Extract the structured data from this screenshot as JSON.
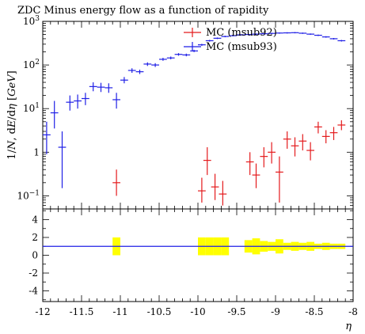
{
  "chart_data": [
    {
      "type": "scatter",
      "title": "ZDC Minus energy flow as a function of rapidity",
      "ylabel": "1/N dE/dη [GeV]",
      "ylabel_parts": [
        "1/",
        "N",
        ", d",
        "E",
        "/d",
        "η",
        " [",
        "GeV",
        "]"
      ],
      "yscale": "log",
      "ylim": [
        0.05,
        1000
      ],
      "xlim": [
        -12,
        -8
      ],
      "y_tick_labels": [
        {
          "value": 1000,
          "base": "10",
          "exp": "3"
        },
        {
          "value": 100,
          "base": "10",
          "exp": "2"
        },
        {
          "value": 10,
          "base": "10",
          "exp": "1"
        },
        {
          "value": 1,
          "base": "1",
          "exp": ""
        },
        {
          "value": 0.1,
          "base": "10",
          "exp": "−1"
        }
      ],
      "legend_position": "top-right",
      "series": [
        {
          "name": "MC (msub92)",
          "color": "#e41a1c",
          "points": [
            {
              "x": -11.05,
              "y": 0.2,
              "ylo": 0.1,
              "yhi": 0.4
            },
            {
              "x": -9.95,
              "y": 0.13,
              "ylo": 0.07,
              "yhi": 0.26
            },
            {
              "x": -9.88,
              "y": 0.65,
              "ylo": 0.3,
              "yhi": 1.3
            },
            {
              "x": -9.78,
              "y": 0.16,
              "ylo": 0.08,
              "yhi": 0.32
            },
            {
              "x": -9.68,
              "y": 0.11,
              "ylo": 0.06,
              "yhi": 0.22
            },
            {
              "x": -9.33,
              "y": 0.6,
              "ylo": 0.3,
              "yhi": 1.0
            },
            {
              "x": -9.25,
              "y": 0.3,
              "ylo": 0.15,
              "yhi": 0.55
            },
            {
              "x": -9.15,
              "y": 0.8,
              "ylo": 0.45,
              "yhi": 1.3
            },
            {
              "x": -9.05,
              "y": 1.0,
              "ylo": 0.55,
              "yhi": 1.7
            },
            {
              "x": -8.95,
              "y": 0.35,
              "ylo": 0.07,
              "yhi": 0.8
            },
            {
              "x": -8.85,
              "y": 2.0,
              "ylo": 1.2,
              "yhi": 3.0
            },
            {
              "x": -8.75,
              "y": 1.4,
              "ylo": 0.8,
              "yhi": 2.2
            },
            {
              "x": -8.65,
              "y": 1.8,
              "ylo": 1.1,
              "yhi": 2.6
            },
            {
              "x": -8.55,
              "y": 1.1,
              "ylo": 0.65,
              "yhi": 1.7
            },
            {
              "x": -8.45,
              "y": 3.8,
              "ylo": 2.7,
              "yhi": 5.0
            },
            {
              "x": -8.35,
              "y": 2.3,
              "ylo": 1.6,
              "yhi": 3.2
            },
            {
              "x": -8.25,
              "y": 2.8,
              "ylo": 1.9,
              "yhi": 3.8
            },
            {
              "x": -8.15,
              "y": 4.2,
              "ylo": 3.2,
              "yhi": 5.4
            }
          ]
        },
        {
          "name": "MC (msub93)",
          "color": "#1f1fe6",
          "points": [
            {
              "x": -11.95,
              "y": 2.5,
              "ylo": 0.9,
              "yhi": 5.0
            },
            {
              "x": -11.85,
              "y": 8.0,
              "ylo": 3.5,
              "yhi": 15.0
            },
            {
              "x": -11.75,
              "y": 1.3,
              "ylo": 0.15,
              "yhi": 3.0
            },
            {
              "x": -11.65,
              "y": 14.0,
              "ylo": 9.0,
              "yhi": 20.0
            },
            {
              "x": -11.55,
              "y": 15.0,
              "ylo": 10.0,
              "yhi": 21.0
            },
            {
              "x": -11.45,
              "y": 17.0,
              "ylo": 12.0,
              "yhi": 23.0
            },
            {
              "x": -11.35,
              "y": 32.0,
              "ylo": 25.0,
              "yhi": 40.0
            },
            {
              "x": -11.25,
              "y": 31.0,
              "ylo": 24.0,
              "yhi": 39.0
            },
            {
              "x": -11.15,
              "y": 30.0,
              "ylo": 23.0,
              "yhi": 38.0
            },
            {
              "x": -11.05,
              "y": 16.0,
              "ylo": 10.0,
              "yhi": 23.0
            },
            {
              "x": -10.95,
              "y": 45.0,
              "ylo": 38.0,
              "yhi": 53.0
            },
            {
              "x": -10.85,
              "y": 75.0,
              "ylo": 66.0,
              "yhi": 84.0
            },
            {
              "x": -10.75,
              "y": 70.0,
              "ylo": 62.0,
              "yhi": 78.0
            },
            {
              "x": -10.65,
              "y": 105.0,
              "ylo": 95.0,
              "yhi": 115.0
            },
            {
              "x": -10.55,
              "y": 100.0,
              "ylo": 90.0,
              "yhi": 110.0
            },
            {
              "x": -10.45,
              "y": 135.0,
              "ylo": 125.0,
              "yhi": 146.0
            },
            {
              "x": -10.35,
              "y": 145.0,
              "ylo": 135.0,
              "yhi": 156.0
            },
            {
              "x": -10.25,
              "y": 175.0,
              "ylo": 163.0,
              "yhi": 187.0
            },
            {
              "x": -10.15,
              "y": 170.0,
              "ylo": 158.0,
              "yhi": 182.0
            },
            {
              "x": -10.05,
              "y": 210.0,
              "ylo": 197.0,
              "yhi": 223.0
            },
            {
              "x": -9.95,
              "y": 290.0,
              "ylo": 275.0,
              "yhi": 305.0
            },
            {
              "x": -9.85,
              "y": 360.0,
              "ylo": 344.0,
              "yhi": 376.0
            },
            {
              "x": -9.75,
              "y": 410.0,
              "ylo": 393.0,
              "yhi": 427.0
            },
            {
              "x": -9.65,
              "y": 450.0,
              "ylo": 432.0,
              "yhi": 468.0
            },
            {
              "x": -9.55,
              "y": 470.0,
              "ylo": 452.0,
              "yhi": 488.0
            },
            {
              "x": -9.45,
              "y": 490.0,
              "ylo": 472.0,
              "yhi": 508.0
            },
            {
              "x": -9.35,
              "y": 500.0,
              "ylo": 482.0,
              "yhi": 518.0
            },
            {
              "x": -9.25,
              "y": 510.0,
              "ylo": 492.0,
              "yhi": 528.0
            },
            {
              "x": -9.15,
              "y": 520.0,
              "ylo": 502.0,
              "yhi": 538.0
            },
            {
              "x": -9.05,
              "y": 530.0,
              "ylo": 512.0,
              "yhi": 548.0
            },
            {
              "x": -8.95,
              "y": 540.0,
              "ylo": 522.0,
              "yhi": 558.0
            },
            {
              "x": -8.85,
              "y": 545.0,
              "ylo": 527.0,
              "yhi": 563.0
            },
            {
              "x": -8.75,
              "y": 550.0,
              "ylo": 532.0,
              "yhi": 568.0
            },
            {
              "x": -8.65,
              "y": 535.0,
              "ylo": 517.0,
              "yhi": 553.0
            },
            {
              "x": -8.55,
              "y": 510.0,
              "ylo": 492.0,
              "yhi": 528.0
            },
            {
              "x": -8.45,
              "y": 480.0,
              "ylo": 462.0,
              "yhi": 498.0
            },
            {
              "x": -8.35,
              "y": 440.0,
              "ylo": 423.0,
              "yhi": 457.0
            },
            {
              "x": -8.25,
              "y": 400.0,
              "ylo": 384.0,
              "yhi": 416.0
            },
            {
              "x": -8.15,
              "y": 360.0,
              "ylo": 345.0,
              "yhi": 375.0
            }
          ]
        }
      ]
    },
    {
      "type": "scatter",
      "title": "",
      "xlabel": "η",
      "ylabel": "",
      "xlim": [
        -12,
        -8
      ],
      "ylim": [
        -5.2,
        5.2
      ],
      "x_ticks": [
        "-12",
        "-11.5",
        "-11",
        "-10.5",
        "-10",
        "-9.5",
        "-9",
        "-8.5",
        "-8"
      ],
      "y_ticks": [
        "4",
        "2",
        "0",
        "-2",
        "-4"
      ],
      "reference_line": {
        "y": 1,
        "color": "#1f1fe6"
      },
      "band_color": "#ffff00",
      "bands": [
        {
          "x0": -11.1,
          "x1": -11.0,
          "ylo": 0.0,
          "yhi": 2.0
        },
        {
          "x0": -10.0,
          "x1": -9.9,
          "ylo": 0.0,
          "yhi": 2.0
        },
        {
          "x0": -9.9,
          "x1": -9.8,
          "ylo": 0.0,
          "yhi": 2.0
        },
        {
          "x0": -9.8,
          "x1": -9.7,
          "ylo": 0.0,
          "yhi": 2.0
        },
        {
          "x0": -9.7,
          "x1": -9.6,
          "ylo": 0.0,
          "yhi": 2.0
        },
        {
          "x0": -9.4,
          "x1": -9.3,
          "ylo": 0.3,
          "yhi": 1.7
        },
        {
          "x0": -9.3,
          "x1": -9.2,
          "ylo": 0.1,
          "yhi": 1.9
        },
        {
          "x0": -9.2,
          "x1": -9.1,
          "ylo": 0.4,
          "yhi": 1.6
        },
        {
          "x0": -9.1,
          "x1": -9.0,
          "ylo": 0.5,
          "yhi": 1.5
        },
        {
          "x0": -9.0,
          "x1": -8.9,
          "ylo": 0.2,
          "yhi": 1.8
        },
        {
          "x0": -8.9,
          "x1": -8.8,
          "ylo": 0.6,
          "yhi": 1.4
        },
        {
          "x0": -8.8,
          "x1": -8.7,
          "ylo": 0.5,
          "yhi": 1.5
        },
        {
          "x0": -8.7,
          "x1": -8.6,
          "ylo": 0.6,
          "yhi": 1.4
        },
        {
          "x0": -8.6,
          "x1": -8.5,
          "ylo": 0.5,
          "yhi": 1.5
        },
        {
          "x0": -8.5,
          "x1": -8.4,
          "ylo": 0.7,
          "yhi": 1.3
        },
        {
          "x0": -8.4,
          "x1": -8.3,
          "ylo": 0.6,
          "yhi": 1.4
        },
        {
          "x0": -8.3,
          "x1": -8.2,
          "ylo": 0.7,
          "yhi": 1.3
        },
        {
          "x0": -8.2,
          "x1": -8.1,
          "ylo": 0.7,
          "yhi": 1.3
        }
      ]
    }
  ]
}
